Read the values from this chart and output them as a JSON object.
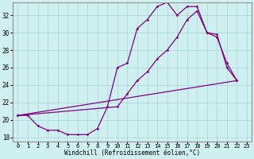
{
  "xlabel": "Windchill (Refroidissement éolien,°C)",
  "xlim": [
    -0.5,
    23.5
  ],
  "ylim": [
    17.5,
    33.5
  ],
  "yticks": [
    18,
    20,
    22,
    24,
    26,
    28,
    30,
    32
  ],
  "xticks": [
    0,
    1,
    2,
    3,
    4,
    5,
    6,
    7,
    8,
    9,
    10,
    11,
    12,
    13,
    14,
    15,
    16,
    17,
    18,
    19,
    20,
    21,
    22,
    23
  ],
  "line_color": "#800080",
  "bg_color": "#cff0f0",
  "grid_color": "#aad4d4",
  "line1_x": [
    0,
    1,
    2,
    3,
    4,
    5,
    6,
    7,
    8,
    9,
    10,
    11,
    12,
    13,
    14,
    15,
    16,
    17,
    18,
    19,
    20,
    21,
    22
  ],
  "line1_y": [
    20.5,
    20.5,
    19.3,
    18.8,
    18.8,
    18.3,
    18.3,
    18.3,
    19.0,
    21.5,
    26.0,
    26.5,
    30.5,
    31.5,
    33.0,
    33.5,
    32.0,
    33.0,
    33.0,
    30.0,
    29.5,
    26.5,
    24.5
  ],
  "line2_x": [
    0,
    10,
    11,
    12,
    13,
    14,
    15,
    16,
    17,
    18,
    19,
    20,
    21,
    22
  ],
  "line2_y": [
    20.5,
    21.5,
    23.0,
    24.5,
    25.5,
    27.0,
    28.0,
    29.5,
    31.5,
    32.5,
    30.0,
    29.8,
    26.0,
    24.5
  ],
  "line3_x": [
    0,
    22
  ],
  "line3_y": [
    20.5,
    24.5
  ]
}
